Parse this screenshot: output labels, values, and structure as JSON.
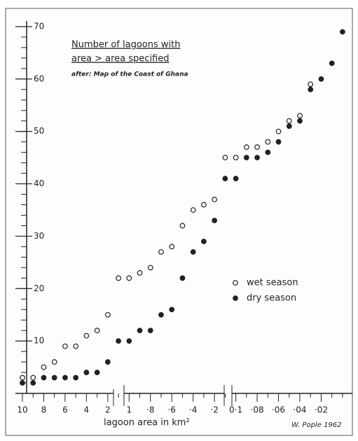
{
  "chart_data": {
    "type": "scatter",
    "title": [
      "Number of lagoons with",
      "area > area specified"
    ],
    "subtitle": "after: Map of the Coast of Ghana",
    "x_label": "lagoon area in km²",
    "credit": "W. Pople 1962",
    "categories": [
      "10",
      null,
      "8",
      null,
      "6",
      null,
      "4",
      null,
      "2",
      null,
      "1",
      null,
      "·8",
      null,
      "·6",
      null,
      "·4",
      null,
      "·2",
      null,
      "0·1",
      null,
      "·08",
      null,
      "·06",
      null,
      "·04",
      null,
      "·02",
      null,
      null
    ],
    "series": [
      {
        "name": "wet season",
        "color": "#222222",
        "marker": "open",
        "values": [
          3,
          3,
          5,
          6,
          9,
          9,
          11,
          12,
          15,
          22,
          22,
          23,
          24,
          27,
          28,
          32,
          35,
          36,
          37,
          45,
          45,
          47,
          47,
          48,
          50,
          52,
          53,
          59,
          null,
          null,
          null
        ]
      },
      {
        "name": "dry season",
        "color": "#222222",
        "marker": "filled",
        "values": [
          2,
          2,
          3,
          3,
          3,
          3,
          4,
          4,
          6,
          10,
          10,
          12,
          12,
          15,
          16,
          22,
          27,
          29,
          33,
          41,
          41,
          45,
          45,
          46,
          48,
          51,
          52,
          58,
          60,
          63,
          69
        ]
      }
    ],
    "ylim": [
      0,
      70
    ],
    "yticks": [
      10,
      20,
      30,
      40,
      50,
      60,
      70
    ]
  }
}
